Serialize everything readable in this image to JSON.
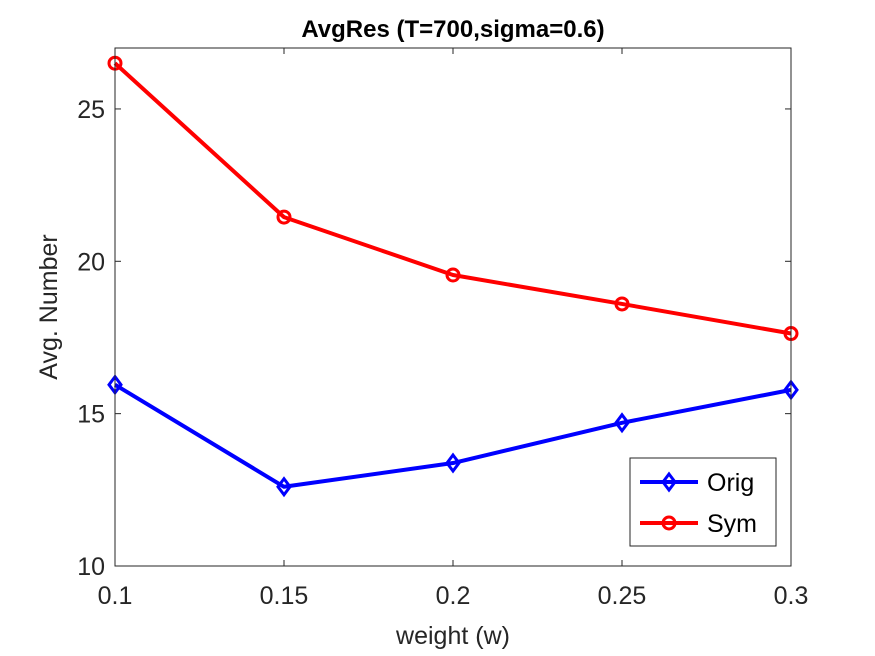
{
  "chart_data": {
    "type": "line",
    "title": "AvgRes (T=700,sigma=0.6)",
    "xlabel": "weight (w)",
    "ylabel": "Avg. Number",
    "x": [
      0.1,
      0.15,
      0.2,
      0.25,
      0.3
    ],
    "xlim": [
      0.1,
      0.3
    ],
    "ylim": [
      10,
      27
    ],
    "xticks": [
      "0.1",
      "0.15",
      "0.2",
      "0.25",
      "0.3"
    ],
    "yticks": [
      "10",
      "15",
      "20",
      "25"
    ],
    "grid": false,
    "legend_position": "bottom-right",
    "series": [
      {
        "name": "Orig",
        "color": "#0000ff",
        "marker": "diamond",
        "values": [
          15.95,
          12.6,
          13.38,
          14.7,
          15.78
        ]
      },
      {
        "name": "Sym",
        "color": "#ff0000",
        "marker": "circle",
        "values": [
          26.5,
          21.45,
          19.55,
          18.6,
          17.63
        ]
      }
    ]
  }
}
